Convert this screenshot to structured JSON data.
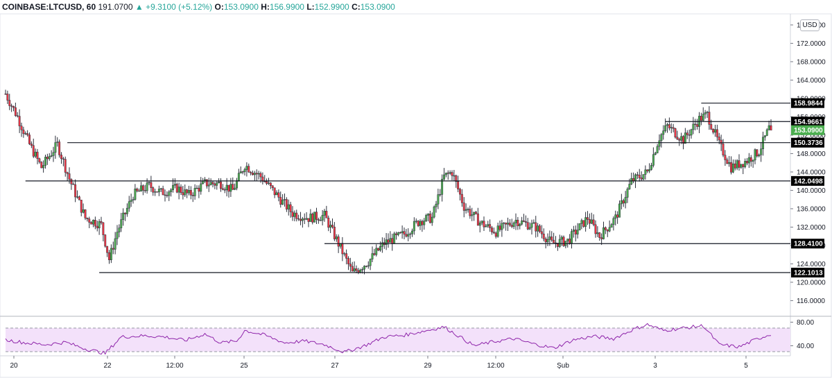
{
  "header": {
    "symbol": "COINBASE:LTCUSD, 60",
    "volume": "191.0700",
    "change": "▲ +9.3100 (+5.12%)",
    "open_label": "O:",
    "open": "153.0900",
    "high_label": "H:",
    "high": "156.9900",
    "low_label": "L:",
    "low": "152.9900",
    "close_label": "C:",
    "close": "153.0900"
  },
  "currency_badge": "USD",
  "colors": {
    "up": "#26a69a",
    "down": "#ef5350",
    "candle_body_up": "#4caf50",
    "candle_body_down": "#f23645",
    "rsi_line": "#8e24aa",
    "rsi_band": "#f3e1fa",
    "price_tag": "#000000",
    "last_price_tag": "#4caf50"
  },
  "chart_data": [
    {
      "type": "candlestick",
      "title": "COINBASE:LTCUSD, 60",
      "ylim": [
        113.5,
        177.5
      ],
      "y_ticks": [
        "116.0000",
        "120.0000",
        "124.0000",
        "128.0000",
        "132.0000",
        "136.0000",
        "140.0000",
        "144.0000",
        "148.0000",
        "152.0000",
        "156.0000",
        "160.0000",
        "164.0000",
        "168.0000",
        "172.0000",
        "176.0000"
      ],
      "x_ticks": [
        "20",
        "22",
        "12:00",
        "25",
        "27",
        "29",
        "12:00",
        "Şub",
        "3",
        "5"
      ],
      "key_points": [
        {
          "t": 0,
          "v": 161.0
        },
        {
          "t": 6,
          "v": 156.0
        },
        {
          "t": 12,
          "v": 150.0
        },
        {
          "t": 18,
          "v": 145.0
        },
        {
          "t": 26,
          "v": 150.0
        },
        {
          "t": 32,
          "v": 142.5
        },
        {
          "t": 40,
          "v": 134.0
        },
        {
          "t": 48,
          "v": 132.5
        },
        {
          "t": 52,
          "v": 125.0
        },
        {
          "t": 56,
          "v": 131.0
        },
        {
          "t": 64,
          "v": 139.0
        },
        {
          "t": 72,
          "v": 141.0
        },
        {
          "t": 78,
          "v": 139.5
        },
        {
          "t": 86,
          "v": 140.5
        },
        {
          "t": 92,
          "v": 139.0
        },
        {
          "t": 100,
          "v": 141.5
        },
        {
          "t": 108,
          "v": 141.5
        },
        {
          "t": 114,
          "v": 140.0
        },
        {
          "t": 120,
          "v": 145.5
        },
        {
          "t": 128,
          "v": 143.0
        },
        {
          "t": 136,
          "v": 139.0
        },
        {
          "t": 144,
          "v": 135.0
        },
        {
          "t": 152,
          "v": 134.0
        },
        {
          "t": 160,
          "v": 134.5
        },
        {
          "t": 168,
          "v": 127.5
        },
        {
          "t": 174,
          "v": 122.0
        },
        {
          "t": 182,
          "v": 124.5
        },
        {
          "t": 190,
          "v": 128.5
        },
        {
          "t": 200,
          "v": 130.5
        },
        {
          "t": 208,
          "v": 133.5
        },
        {
          "t": 214,
          "v": 134.0
        },
        {
          "t": 220,
          "v": 143.0
        },
        {
          "t": 224,
          "v": 144.0
        },
        {
          "t": 230,
          "v": 136.5
        },
        {
          "t": 238,
          "v": 133.0
        },
        {
          "t": 246,
          "v": 131.0
        },
        {
          "t": 256,
          "v": 133.5
        },
        {
          "t": 266,
          "v": 132.0
        },
        {
          "t": 274,
          "v": 128.5
        },
        {
          "t": 282,
          "v": 129.0
        },
        {
          "t": 292,
          "v": 134.0
        },
        {
          "t": 298,
          "v": 130.0
        },
        {
          "t": 306,
          "v": 134.0
        },
        {
          "t": 314,
          "v": 142.0
        },
        {
          "t": 322,
          "v": 144.0
        },
        {
          "t": 328,
          "v": 151.5
        },
        {
          "t": 332,
          "v": 154.0
        },
        {
          "t": 340,
          "v": 151.0
        },
        {
          "t": 348,
          "v": 155.5
        },
        {
          "t": 352,
          "v": 156.5
        },
        {
          "t": 358,
          "v": 150.0
        },
        {
          "t": 364,
          "v": 145.0
        },
        {
          "t": 372,
          "v": 146.5
        },
        {
          "t": 378,
          "v": 148.5
        },
        {
          "t": 384,
          "v": 154.5
        }
      ],
      "levels": [
        {
          "label": "158.9844",
          "value": 158.9844,
          "from_t": 349
        },
        {
          "label": "154.9661",
          "value": 154.9661,
          "from_t": 331
        },
        {
          "label": "150.3736",
          "value": 150.3736,
          "from_t": 31
        },
        {
          "label": "142.0498",
          "value": 142.0498,
          "from_t": 10
        },
        {
          "label": "128.4100",
          "value": 128.41,
          "from_t": 160
        },
        {
          "label": "122.1013",
          "value": 122.1013,
          "from_t": 47
        }
      ],
      "last_price": {
        "label": "153.0900",
        "value": 153.09
      }
    },
    {
      "type": "line",
      "title": "RSI",
      "ylim": [
        23,
        90
      ],
      "y_ticks": [
        "80.00",
        "40.00"
      ],
      "band": [
        30,
        70
      ],
      "key_points": [
        {
          "t": 0,
          "v": 50
        },
        {
          "t": 10,
          "v": 45
        },
        {
          "t": 20,
          "v": 42
        },
        {
          "t": 30,
          "v": 46
        },
        {
          "t": 40,
          "v": 35
        },
        {
          "t": 50,
          "v": 27
        },
        {
          "t": 58,
          "v": 55
        },
        {
          "t": 70,
          "v": 57
        },
        {
          "t": 80,
          "v": 55
        },
        {
          "t": 90,
          "v": 49
        },
        {
          "t": 100,
          "v": 60
        },
        {
          "t": 108,
          "v": 45
        },
        {
          "t": 116,
          "v": 48
        },
        {
          "t": 120,
          "v": 66
        },
        {
          "t": 130,
          "v": 58
        },
        {
          "t": 140,
          "v": 45
        },
        {
          "t": 150,
          "v": 48
        },
        {
          "t": 160,
          "v": 42
        },
        {
          "t": 170,
          "v": 29
        },
        {
          "t": 180,
          "v": 40
        },
        {
          "t": 190,
          "v": 55
        },
        {
          "t": 200,
          "v": 58
        },
        {
          "t": 210,
          "v": 65
        },
        {
          "t": 220,
          "v": 72
        },
        {
          "t": 228,
          "v": 55
        },
        {
          "t": 235,
          "v": 40
        },
        {
          "t": 245,
          "v": 47
        },
        {
          "t": 255,
          "v": 52
        },
        {
          "t": 265,
          "v": 43
        },
        {
          "t": 275,
          "v": 36
        },
        {
          "t": 285,
          "v": 50
        },
        {
          "t": 295,
          "v": 56
        },
        {
          "t": 305,
          "v": 52
        },
        {
          "t": 315,
          "v": 68
        },
        {
          "t": 322,
          "v": 76
        },
        {
          "t": 330,
          "v": 66
        },
        {
          "t": 340,
          "v": 70
        },
        {
          "t": 350,
          "v": 74
        },
        {
          "t": 358,
          "v": 42
        },
        {
          "t": 368,
          "v": 38
        },
        {
          "t": 376,
          "v": 50
        },
        {
          "t": 384,
          "v": 60
        }
      ]
    }
  ]
}
